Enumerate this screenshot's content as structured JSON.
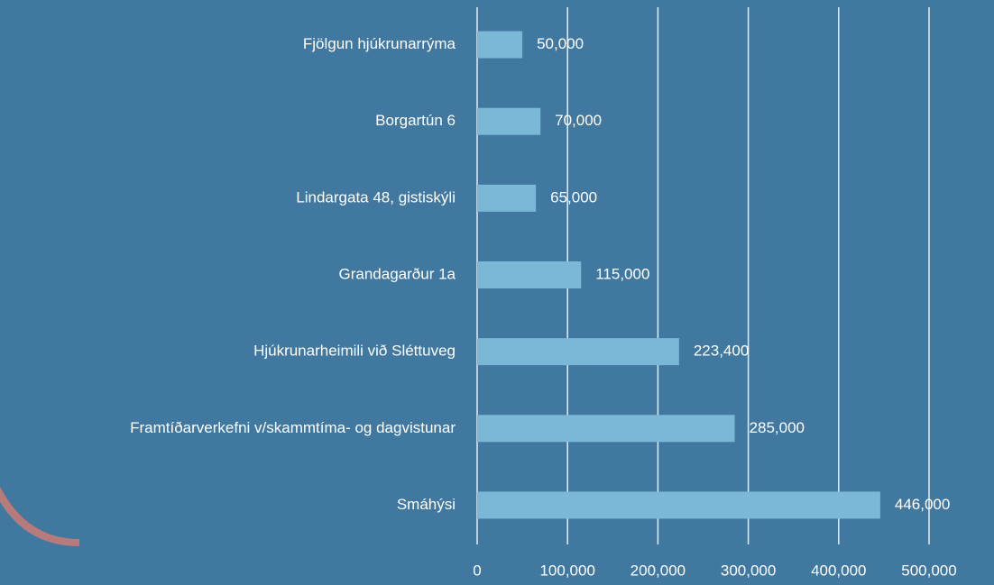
{
  "chart_data": {
    "type": "bar",
    "orientation": "horizontal",
    "categories": [
      "Fjölgun hjúkrunarrýma",
      "Borgartún 6",
      "Lindargata 48, gistiskýli",
      "Grandagarður 1a",
      "Hjúkrunarheimili við Sléttuveg",
      "Framtíðarverkefni v/skammtíma- og dagvistunar",
      "Smáhýsi"
    ],
    "values": [
      50000,
      70000,
      65000,
      115000,
      223400,
      285000,
      446000
    ],
    "value_labels": [
      "50,000",
      "70,000",
      "65,000",
      "115,000",
      "223,400",
      "285,000",
      "446,000"
    ],
    "color": "#7bb7d6",
    "xlim": [
      0,
      500000
    ],
    "xticks": [
      0,
      {
        "value": 100000,
        "label": "100,000"
      },
      {
        "value": 200000,
        "label": "200,000"
      },
      {
        "value": 300000,
        "label": "300,000"
      },
      {
        "value": 400000,
        "label": "400,000"
      },
      {
        "value": 500000,
        "label": "500,000"
      }
    ],
    "grid": true
  }
}
